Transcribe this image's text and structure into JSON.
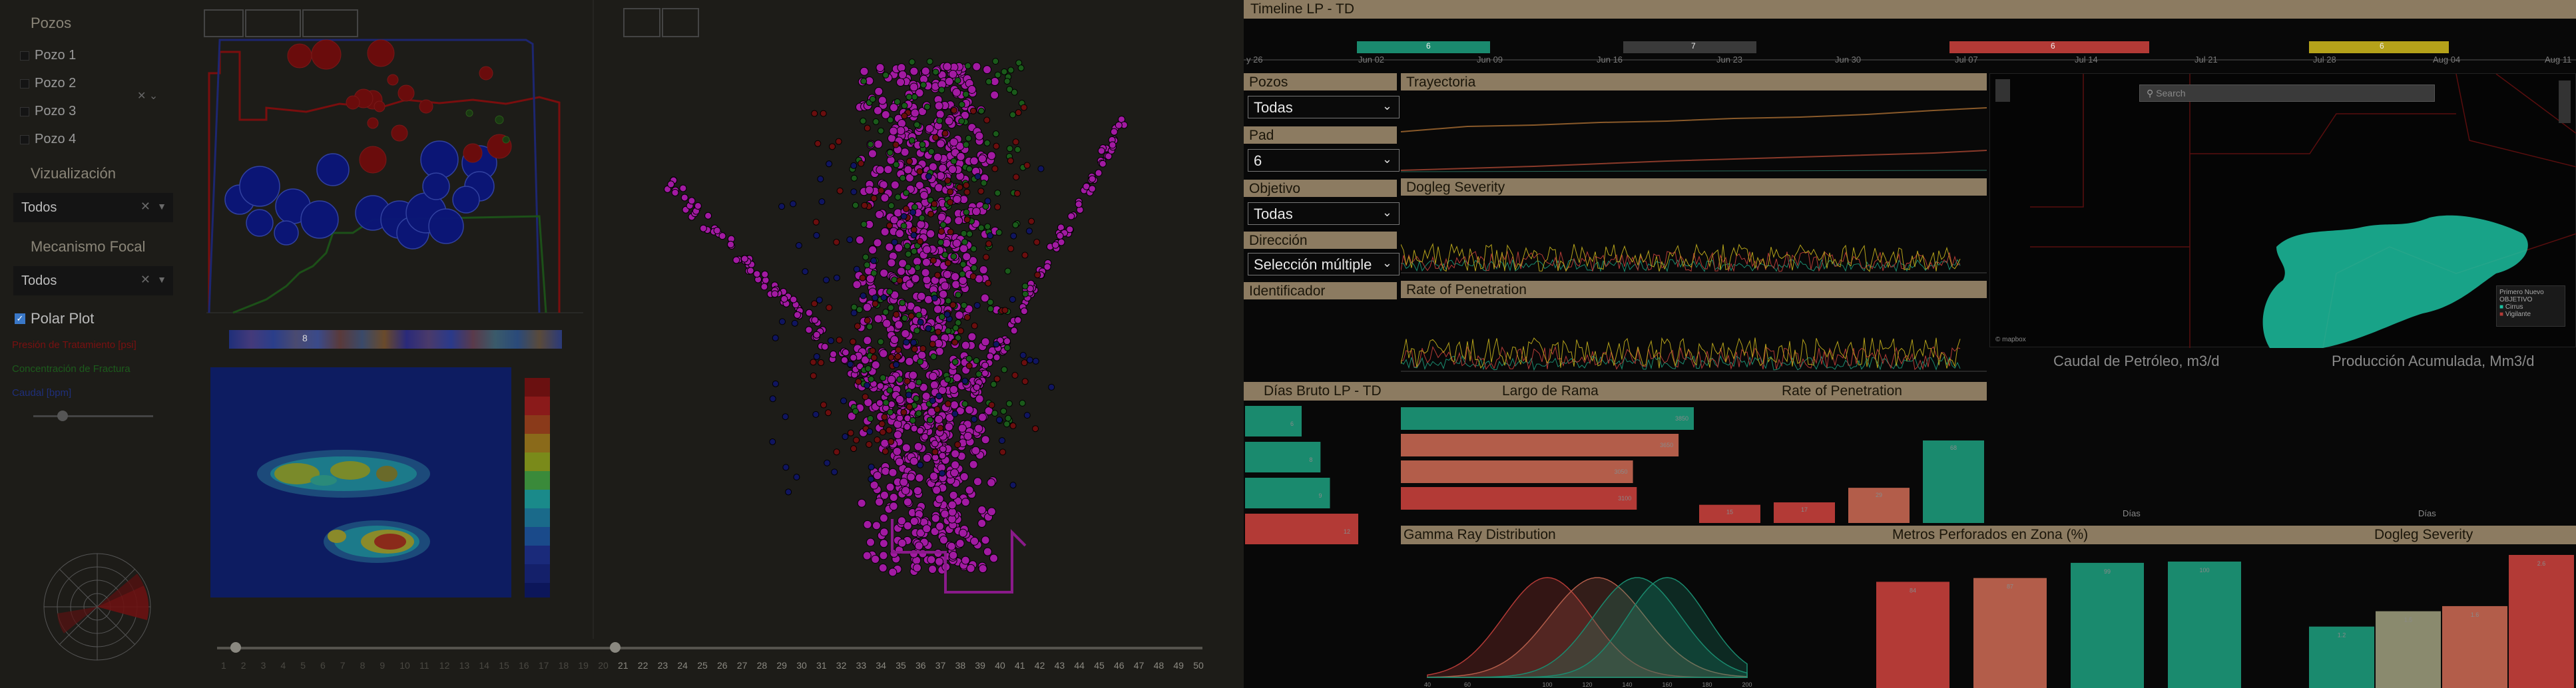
{
  "left_panel": {
    "pozos_title": "Pozos",
    "pozos": [
      "Pozo 1",
      "Pozo 2",
      "Pozo 3",
      "Pozo 4"
    ],
    "viz_title": "Vizualización",
    "viz_value": "Todos",
    "mec_title": "Mecanismo Focal",
    "mec_value": "Todos",
    "polar_label": "Polar Plot",
    "legend": [
      {
        "label": "Presión de Tratamiento [psi]",
        "color": "#7a1010"
      },
      {
        "label": "Concentración de Fractura",
        "color": "#1c5b1c"
      },
      {
        "label": "Caudal [bpm]",
        "color": "#1f2f7a"
      }
    ],
    "color_marker": "8",
    "slider_start": "1",
    "slider_labels": [
      "1",
      "2",
      "3",
      "4",
      "5",
      "6",
      "7",
      "8",
      "9",
      "10",
      "11",
      "12",
      "13",
      "14",
      "15",
      "16",
      "17",
      "18",
      "19",
      "20",
      "21",
      "22",
      "23",
      "24",
      "25",
      "26",
      "27",
      "28",
      "29",
      "30",
      "31",
      "32",
      "33",
      "34",
      "35",
      "36",
      "37",
      "38",
      "39",
      "40",
      "41",
      "42",
      "43",
      "44",
      "45",
      "46",
      "47",
      "48",
      "49",
      "50"
    ]
  },
  "timeline": {
    "title": "Timeline LP - TD",
    "dates": [
      "Jun 02",
      "Jun 09",
      "Jun 16",
      "Jun 23",
      "Jun 30",
      "Jul 07",
      "Jul 14",
      "Jul 21",
      "Jul 28",
      "Aug 04",
      "Aug 11"
    ],
    "first_label": "y 26",
    "bars": [
      {
        "label": "6",
        "color": "#1a8a6e"
      },
      {
        "label": "7",
        "color": "#3a3a3a"
      },
      {
        "label": "6",
        "color": "#b33a36"
      },
      {
        "label": "6",
        "color": "#b5a21a"
      }
    ]
  },
  "filters": {
    "pozos_label": "Pozos",
    "pozos_value": "Todas",
    "pad_label": "Pad",
    "pad_value": "6",
    "objetivo_label": "Objetivo",
    "objetivo_value": "Todas",
    "direccion_label": "Dirección",
    "direccion_value": "Selección múltiple",
    "identificador_label": "Identificador"
  },
  "charts": {
    "trayectoria": "Trayectoria",
    "dogleg": "Dogleg Severity",
    "rop": "Rate of Penetration",
    "dias_bruto": "Días Bruto LP - TD",
    "largo_rama": "Largo de Rama",
    "rop2": "Rate of Penetration",
    "gamma": "Gamma Ray Distribution",
    "metros": "Metros Perforados en Zona (%)",
    "dogleg2": "Dogleg Severity",
    "caudal": "Caudal de Petróleo, m3/d",
    "produccion": "Producción Acumulada, Mm3/d",
    "dias_axis": "Días"
  },
  "map": {
    "search_placeholder": "Search",
    "legend_title": "Primero Nuevo",
    "legend_sub": "OBJETIVO",
    "legend_items": [
      "Cirrus",
      "Vigilante"
    ],
    "attribution": "© mapbox"
  },
  "chart_data": [
    {
      "type": "bar",
      "title": "Días Bruto LP - TD",
      "values": [
        6,
        8,
        9,
        12
      ],
      "colors": [
        "#1a8a6e",
        "#1a8a6e",
        "#1a8a6e",
        "#b33a36"
      ]
    },
    {
      "type": "bar",
      "title": "Largo de Rama",
      "values": [
        3850,
        3650,
        3050,
        3100
      ],
      "colors": [
        "#1a8a6e",
        "#b35d4a",
        "#b35d4a",
        "#b33a36"
      ]
    },
    {
      "type": "bar",
      "title": "Rate of Penetration",
      "values": [
        15,
        17,
        29,
        68
      ],
      "colors": [
        "#b33a36",
        "#b33a36",
        "#b35d4a",
        "#1a8a6e"
      ]
    },
    {
      "type": "bar",
      "title": "Metros Perforados en Zona (%)",
      "values": [
        84,
        87,
        99,
        100
      ],
      "colors": [
        "#b33a36",
        "#b35d4a",
        "#1a8a6e",
        "#1a8a6e"
      ]
    },
    {
      "type": "bar",
      "title": "Dogleg Severity",
      "values": [
        1.2,
        1.5,
        1.6,
        2.6
      ],
      "colors": [
        "#1a8a6e",
        "#8a8a6e",
        "#b35d4a",
        "#b33a36"
      ]
    },
    {
      "type": "line",
      "title": "Gamma Ray Distribution",
      "x_ticks": [
        "40",
        "60",
        "100",
        "120",
        "140",
        "160",
        "180",
        "200"
      ],
      "series": [
        {
          "color": "#b33a36",
          "mean": 100,
          "sd": 22
        },
        {
          "color": "#b35d4a",
          "mean": 125,
          "sd": 24
        },
        {
          "color": "#1a8a6e",
          "mean": 145,
          "sd": 22
        },
        {
          "color": "#1a8a6e",
          "mean": 160,
          "sd": 20
        }
      ]
    }
  ]
}
